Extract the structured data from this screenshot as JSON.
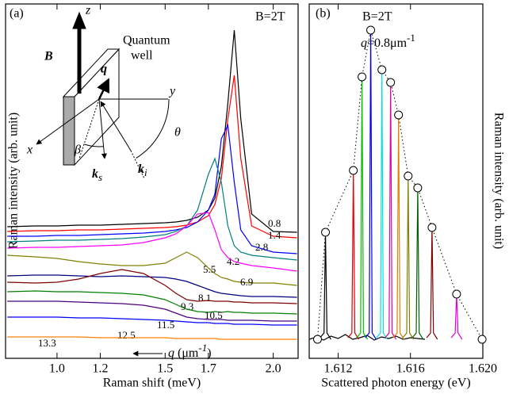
{
  "chart_data": [
    {
      "type": "line",
      "panel_label": "(a)",
      "field_label": "B=2T",
      "xlabel": "Raman shift (meV)",
      "ylabel": "Raman intensity (arb. unit)",
      "label_title": [
        "q",
        " (μm",
        "-1",
        ")"
      ],
      "inset": {
        "z": "z",
        "y": "y",
        "x": "x",
        "well": [
          "Quantum",
          "well"
        ],
        "B": "B",
        "q": "q",
        "theta": "θ",
        "beta": "β",
        "k_i": [
          "k",
          "i"
        ],
        "k_s": [
          "k",
          "s"
        ]
      },
      "x": [
        0.77,
        0.9,
        1.0,
        1.1,
        1.2,
        1.3,
        1.4,
        1.5,
        1.55,
        1.6,
        1.65,
        1.7,
        1.73,
        1.76,
        1.79,
        1.82,
        1.85,
        1.9,
        2.0,
        2.11
      ],
      "xlim": [
        0.762,
        2.115
      ],
      "xticks": [
        {
          "value": 1,
          "label": "1.0"
        },
        1.2,
        1.5,
        1.7,
        {
          "value": 2,
          "label": "2.0"
        }
      ],
      "ylim": [
        -12,
        435
      ],
      "series": [
        {
          "name": "0.8",
          "color": "#000000",
          "values": [
            154,
            155,
            155,
            156,
            156,
            157,
            158,
            159,
            160,
            162,
            166,
            175,
            190,
            230,
            310,
            402,
            290,
            170,
            148,
            147
          ]
        },
        {
          "name": "1.4",
          "color": "#ff0000",
          "values": [
            148,
            149,
            149,
            150,
            150,
            151,
            152,
            153,
            154,
            156,
            160,
            168,
            182,
            215,
            290,
            345,
            240,
            155,
            142,
            140
          ]
        },
        {
          "name": "2.8",
          "color": "#0000ff",
          "values": [
            142,
            142,
            143,
            143,
            144,
            145,
            146,
            148,
            150,
            153,
            160,
            175,
            195,
            265,
            282,
            210,
            150,
            130,
            122,
            120
          ]
        },
        {
          "name": "4.2",
          "color": "#008080",
          "values": [
            135,
            136,
            137,
            137,
            138,
            139,
            141,
            144,
            148,
            155,
            175,
            220,
            240,
            210,
            155,
            130,
            122,
            118,
            115,
            112
          ]
        },
        {
          "name": "5.5",
          "color": "#ff00ff",
          "values": [
            127,
            128,
            128,
            129,
            130,
            131,
            134,
            140,
            145,
            155,
            170,
            172,
            150,
            125,
            115,
            110,
            108,
            105,
            102,
            98
          ]
        },
        {
          "name": "6.9",
          "color": "#808000",
          "values": [
            118,
            116,
            114,
            110,
            107,
            105,
            105,
            108,
            115,
            122,
            115,
            102,
            95,
            90,
            88,
            85,
            84,
            83,
            83,
            80
          ]
        },
        {
          "name": "8.1",
          "color": "#000080",
          "values": [
            92,
            93,
            93,
            92,
            91,
            92,
            91,
            90,
            88,
            85,
            80,
            75,
            72,
            70,
            69,
            68,
            67,
            66,
            66,
            65
          ]
        },
        {
          "name": "9.3",
          "color": "#800000",
          "values": [
            84,
            83,
            84,
            88,
            95,
            100,
            95,
            80,
            70,
            62,
            60,
            61,
            60,
            60,
            60,
            59,
            59,
            58,
            58,
            57
          ]
        },
        {
          "name": "10.5",
          "color": "#008000",
          "values": [
            72,
            73,
            72,
            72,
            71,
            70,
            68,
            62,
            56,
            50,
            47,
            46,
            47,
            46,
            47,
            46,
            46,
            45,
            45,
            44
          ]
        },
        {
          "name": "11.5",
          "color": "#4b0082",
          "values": [
            60,
            60,
            60,
            59,
            58,
            57,
            55,
            50,
            45,
            40,
            38,
            37,
            37,
            37,
            36,
            36,
            36,
            36,
            35,
            35
          ]
        },
        {
          "name": "12.5",
          "color": "#0000ff",
          "values": [
            40,
            40,
            40,
            39,
            39,
            38,
            37,
            36,
            35,
            34,
            33,
            33,
            32,
            32,
            32,
            31,
            31,
            31,
            30,
            30
          ]
        },
        {
          "name": "13.3",
          "color": "#ff8000",
          "values": [
            15,
            15,
            15,
            15,
            14,
            14,
            14,
            14,
            13,
            13,
            13,
            13,
            13,
            12,
            12,
            12,
            12,
            12,
            12,
            12
          ]
        }
      ]
    },
    {
      "type": "line",
      "panel_label": "(b)",
      "field_label": "B=2T",
      "q_label": [
        "q",
        "=0.8μm",
        "-1"
      ],
      "xlabel": "Scattered photon energy (eV)",
      "ylabel": "Raman intensity (arb. unit)",
      "xlim": [
        1.6104,
        1.62
      ],
      "xticks": [
        1.612,
        1.616,
        {
          "value": 1.62,
          "label": "1.620"
        }
      ],
      "ylim": [
        -12,
        435
      ],
      "series": [
        {
          "color": "#000000",
          "x": [
            1.6104,
            1.6108,
            1.6112,
            1.6116,
            1.612,
            1.6124,
            1.6128,
            1.6132,
            1.6136,
            1.614,
            1.6144,
            1.6148,
            1.6152,
            1.6156,
            1.616,
            1.6164,
            1.6168
          ],
          "values": [
            12,
            15,
            11,
            16,
            13,
            18,
            12,
            14,
            17,
            11,
            15,
            13,
            16,
            12,
            14,
            13,
            12
          ]
        },
        {
          "color": "#000000",
          "x": [
            1.611,
            1.61122,
            1.6113,
            1.61138,
            1.6116
          ],
          "values": [
            14,
            20,
            147,
            20,
            12
          ]
        },
        {
          "color": "#e00000",
          "x": [
            1.61254,
            1.61276,
            1.61284,
            1.61292,
            1.61314
          ],
          "values": [
            14,
            20,
            225,
            20,
            12
          ]
        },
        {
          "color": "#00c000",
          "x": [
            1.61302,
            1.61324,
            1.61332,
            1.6134,
            1.61362
          ],
          "values": [
            14,
            20,
            343,
            20,
            12
          ]
        },
        {
          "color": "#0000e0",
          "x": [
            1.6135,
            1.61372,
            1.6138,
            1.61388,
            1.6141
          ],
          "values": [
            14,
            20,
            402,
            20,
            12
          ]
        },
        {
          "color": "#00e0e0",
          "x": [
            1.61412,
            1.61434,
            1.61442,
            1.6145,
            1.61472
          ],
          "values": [
            14,
            20,
            352,
            20,
            12
          ]
        },
        {
          "color": "#e000a0",
          "x": [
            1.6146,
            1.61482,
            1.6149,
            1.61498,
            1.6152
          ],
          "values": [
            14,
            20,
            336,
            20,
            12
          ]
        },
        {
          "color": "#e08000",
          "x": [
            1.61504,
            1.61526,
            1.61534,
            1.61542,
            1.61564
          ],
          "values": [
            14,
            20,
            295,
            20,
            12
          ]
        },
        {
          "color": "#808000",
          "x": [
            1.61557,
            1.61579,
            1.61587,
            1.61595,
            1.61617
          ],
          "values": [
            14,
            20,
            218,
            20,
            12
          ]
        },
        {
          "color": "#006000",
          "x": [
            1.6161,
            1.61632,
            1.6164,
            1.61648,
            1.6167
          ],
          "values": [
            14,
            20,
            203,
            20,
            12
          ]
        },
        {
          "color": "#800000",
          "x": [
            1.61689,
            1.61711,
            1.61719,
            1.61727,
            1.61749
          ],
          "values": [
            14,
            20,
            153,
            20,
            12
          ]
        },
        {
          "color": "#e000e0",
          "x": [
            1.61825,
            1.61847,
            1.61855,
            1.61863,
            1.61885
          ],
          "values": [
            14,
            20,
            69,
            20,
            12
          ]
        }
      ],
      "envelope": {
        "x": [
          1.61086,
          1.6113,
          1.61284,
          1.61332,
          1.6138,
          1.61442,
          1.6149,
          1.61534,
          1.61587,
          1.6164,
          1.61719,
          1.61855,
          1.61996
        ],
        "values": [
          12,
          147,
          225,
          343,
          402,
          352,
          336,
          295,
          218,
          203,
          153,
          69,
          12
        ]
      }
    }
  ]
}
